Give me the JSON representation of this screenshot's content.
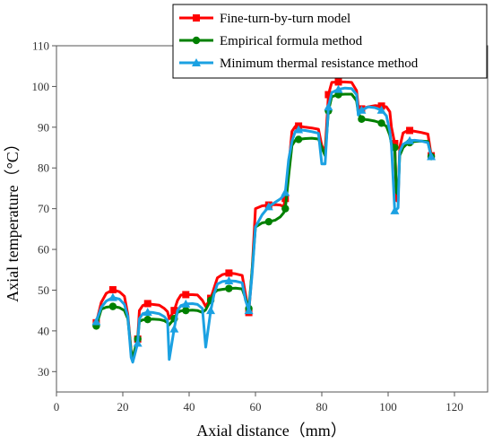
{
  "chart_data": {
    "type": "line",
    "xlabel": "Axial distance（mm）",
    "ylabel": "Axial temperature（°C）",
    "xlim": [
      0,
      130
    ],
    "ylim": [
      25,
      110
    ],
    "xticks": [
      0,
      20,
      40,
      60,
      80,
      100,
      120
    ],
    "yticks": [
      30,
      40,
      50,
      60,
      70,
      80,
      90,
      100,
      110
    ],
    "grid": false,
    "legend_position": "top-right",
    "series": [
      {
        "name": "Fine-turn-by-turn model",
        "color": "#ff0000",
        "marker": "square",
        "x": [
          12,
          13.5,
          15,
          17,
          19,
          20.5,
          21.5,
          22.5,
          23,
          23.5,
          24.5,
          25,
          26,
          27.5,
          29,
          31,
          32.5,
          33.5,
          34,
          35.5,
          36.5,
          37.5,
          39,
          41,
          42.5,
          44,
          45,
          46.5,
          47.5,
          48.5,
          50,
          52,
          54,
          56,
          57,
          58,
          59,
          60,
          62,
          64,
          66,
          67.5,
          68.5,
          69,
          70,
          71,
          72,
          73,
          75,
          77,
          79,
          80,
          81,
          82,
          83,
          85,
          87,
          89,
          90.5,
          91,
          92,
          94,
          96,
          98,
          99.5,
          100.5,
          101,
          102,
          102.5,
          103,
          103.5,
          104.5,
          105.5,
          106.5,
          108,
          110,
          112,
          113
        ],
        "y": [
          42,
          47,
          49.2,
          50.1,
          49.6,
          48.5,
          44,
          35,
          33,
          34.5,
          38,
          45,
          46.2,
          46.7,
          46.5,
          46.3,
          45.5,
          44.7,
          43,
          45,
          47.5,
          48.8,
          48.9,
          48.9,
          48.8,
          47.5,
          46,
          48,
          50.5,
          53,
          53.8,
          54.2,
          54,
          53.6,
          49,
          44.5,
          55,
          70,
          70.7,
          70.9,
          71,
          70.9,
          70.5,
          72.5,
          80,
          89,
          90.2,
          90.3,
          90,
          89.8,
          89.5,
          85.5,
          84,
          98,
          101,
          101.1,
          101.1,
          101,
          99,
          95,
          94.5,
          95,
          95.3,
          95.2,
          95,
          93.8,
          90,
          86,
          72,
          71.8,
          85,
          88.6,
          89,
          89.2,
          89,
          88.7,
          88.3,
          83
        ]
      },
      {
        "name": "Empirical formula method",
        "color": "#008000",
        "marker": "circle",
        "x": [
          12,
          13.5,
          15,
          17,
          19,
          20.5,
          21.5,
          22.5,
          23,
          23.5,
          24.5,
          25,
          26,
          27.5,
          29,
          31,
          32.5,
          33.5,
          34,
          35.5,
          36.5,
          37.5,
          39,
          41,
          42.5,
          44,
          45,
          46.5,
          47.5,
          48.5,
          50,
          52,
          54,
          56,
          57,
          58,
          59,
          60,
          62,
          64,
          66,
          67.5,
          68.5,
          69,
          70,
          71,
          72,
          73,
          75,
          77,
          79,
          80,
          81,
          82,
          83,
          85,
          87,
          89,
          90.5,
          91,
          92,
          94,
          96,
          98,
          99.5,
          100.5,
          101,
          102,
          102.5,
          103,
          103.5,
          104.5,
          105.5,
          106.5,
          108,
          110,
          112,
          113
        ],
        "y": [
          41.2,
          45.3,
          45.8,
          46,
          45.7,
          45,
          43,
          35,
          33.4,
          35,
          38,
          42.3,
          42.7,
          42.8,
          42.9,
          42.8,
          42.5,
          42,
          41.5,
          43,
          44.5,
          44.9,
          45,
          45.1,
          45,
          44.5,
          45.2,
          47.5,
          49.3,
          50,
          50.2,
          50.4,
          50.5,
          50.3,
          48,
          45.5,
          55,
          65.5,
          66.5,
          66.8,
          67.2,
          68,
          69,
          70,
          78,
          85.5,
          86.8,
          87,
          87.2,
          87.3,
          87.1,
          85,
          83,
          94,
          97.5,
          98,
          98.1,
          98.1,
          96.5,
          93.5,
          92,
          91.8,
          91.5,
          91,
          90.2,
          88,
          86,
          85,
          74,
          73.5,
          83,
          85,
          85.8,
          86.2,
          86.5,
          86.6,
          86.5,
          82.8
        ]
      },
      {
        "name": "Minimum thermal resistance method",
        "color": "#1ba1e2",
        "marker": "triangle",
        "x": [
          12,
          13.5,
          15,
          17,
          19,
          20.5,
          21.5,
          22.5,
          23,
          23.5,
          24.5,
          25,
          26,
          27.5,
          29,
          31,
          32.5,
          33.5,
          34,
          35.5,
          36.5,
          37.5,
          39,
          41,
          42.5,
          44,
          45,
          46.5,
          47.5,
          48.5,
          50,
          52,
          54,
          56,
          57,
          58,
          59,
          60,
          62,
          64,
          66,
          67.5,
          68.5,
          69,
          70,
          71,
          72,
          73,
          75,
          77,
          79,
          80,
          81,
          82,
          83,
          85,
          87,
          89,
          90.5,
          91,
          92,
          94,
          96,
          98,
          99.5,
          100.5,
          101,
          102,
          102.5,
          103,
          103.5,
          104.5,
          105.5,
          106.5,
          108,
          110,
          112,
          113
        ],
        "y": [
          42.3,
          45.8,
          47.3,
          48.2,
          47.8,
          46.5,
          43.5,
          33.5,
          32.3,
          33.8,
          37,
          43,
          44.2,
          44.6,
          44.5,
          44.2,
          43.5,
          42.5,
          33,
          40.5,
          45,
          46.2,
          46.6,
          46.7,
          46.5,
          45.5,
          36,
          45,
          49,
          51.5,
          52.1,
          52.3,
          52.2,
          51.8,
          47.5,
          45,
          54,
          65.5,
          68.5,
          70.5,
          71.6,
          72.4,
          73.2,
          74,
          82,
          86.5,
          89,
          89.4,
          89.2,
          88.9,
          88.5,
          81,
          81,
          95,
          98.5,
          99.3,
          99.6,
          99.5,
          98,
          93,
          94.2,
          95,
          94.8,
          94.2,
          92.8,
          89,
          85.5,
          69.5,
          69.8,
          70.2,
          84,
          85.8,
          86.3,
          86.7,
          86.8,
          86.6,
          86.2,
          82.8
        ]
      }
    ]
  }
}
